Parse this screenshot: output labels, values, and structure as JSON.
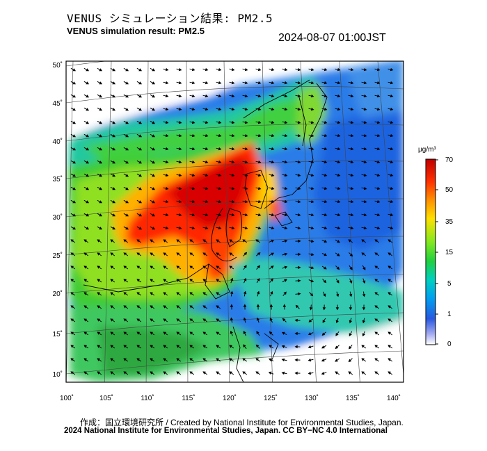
{
  "header": {
    "title_jp": "VENUS シミュレーション結果: PM2.5",
    "title_en": "VENUS simulation result: PM2.5",
    "timestamp": "2024-08-07 01:00JST"
  },
  "map": {
    "lat_labels": [
      "50˚",
      "45˚",
      "40˚",
      "35˚",
      "30˚",
      "25˚",
      "20˚",
      "15˚",
      "10˚"
    ],
    "lon_labels": [
      "100˚",
      "105˚",
      "110˚",
      "115˚",
      "120˚",
      "125˚",
      "130˚",
      "135˚",
      "140˚"
    ],
    "lat_values": [
      50,
      45,
      40,
      35,
      30,
      25,
      20,
      15,
      10
    ],
    "lon_values": [
      100,
      105,
      110,
      115,
      120,
      125,
      130,
      135,
      140
    ]
  },
  "colorbar": {
    "unit": "μg/m³",
    "ticks": [
      "70",
      "50",
      "35",
      "15",
      "5",
      "1",
      "0"
    ],
    "colors": [
      "#d00000",
      "#ff4000",
      "#ffa000",
      "#ffe000",
      "#a0f000",
      "#30d030",
      "#00d8b0",
      "#00a8f0",
      "#2060e0",
      "#8090f0",
      "#ffffff"
    ]
  },
  "credits": {
    "line1": "作成：国立環境研究所 / Created by National Institute for Environmental Studies, Japan.",
    "line2": "2024 National Institute for Environmental Studies, Japan. CC BY−NC 4.0 International"
  }
}
